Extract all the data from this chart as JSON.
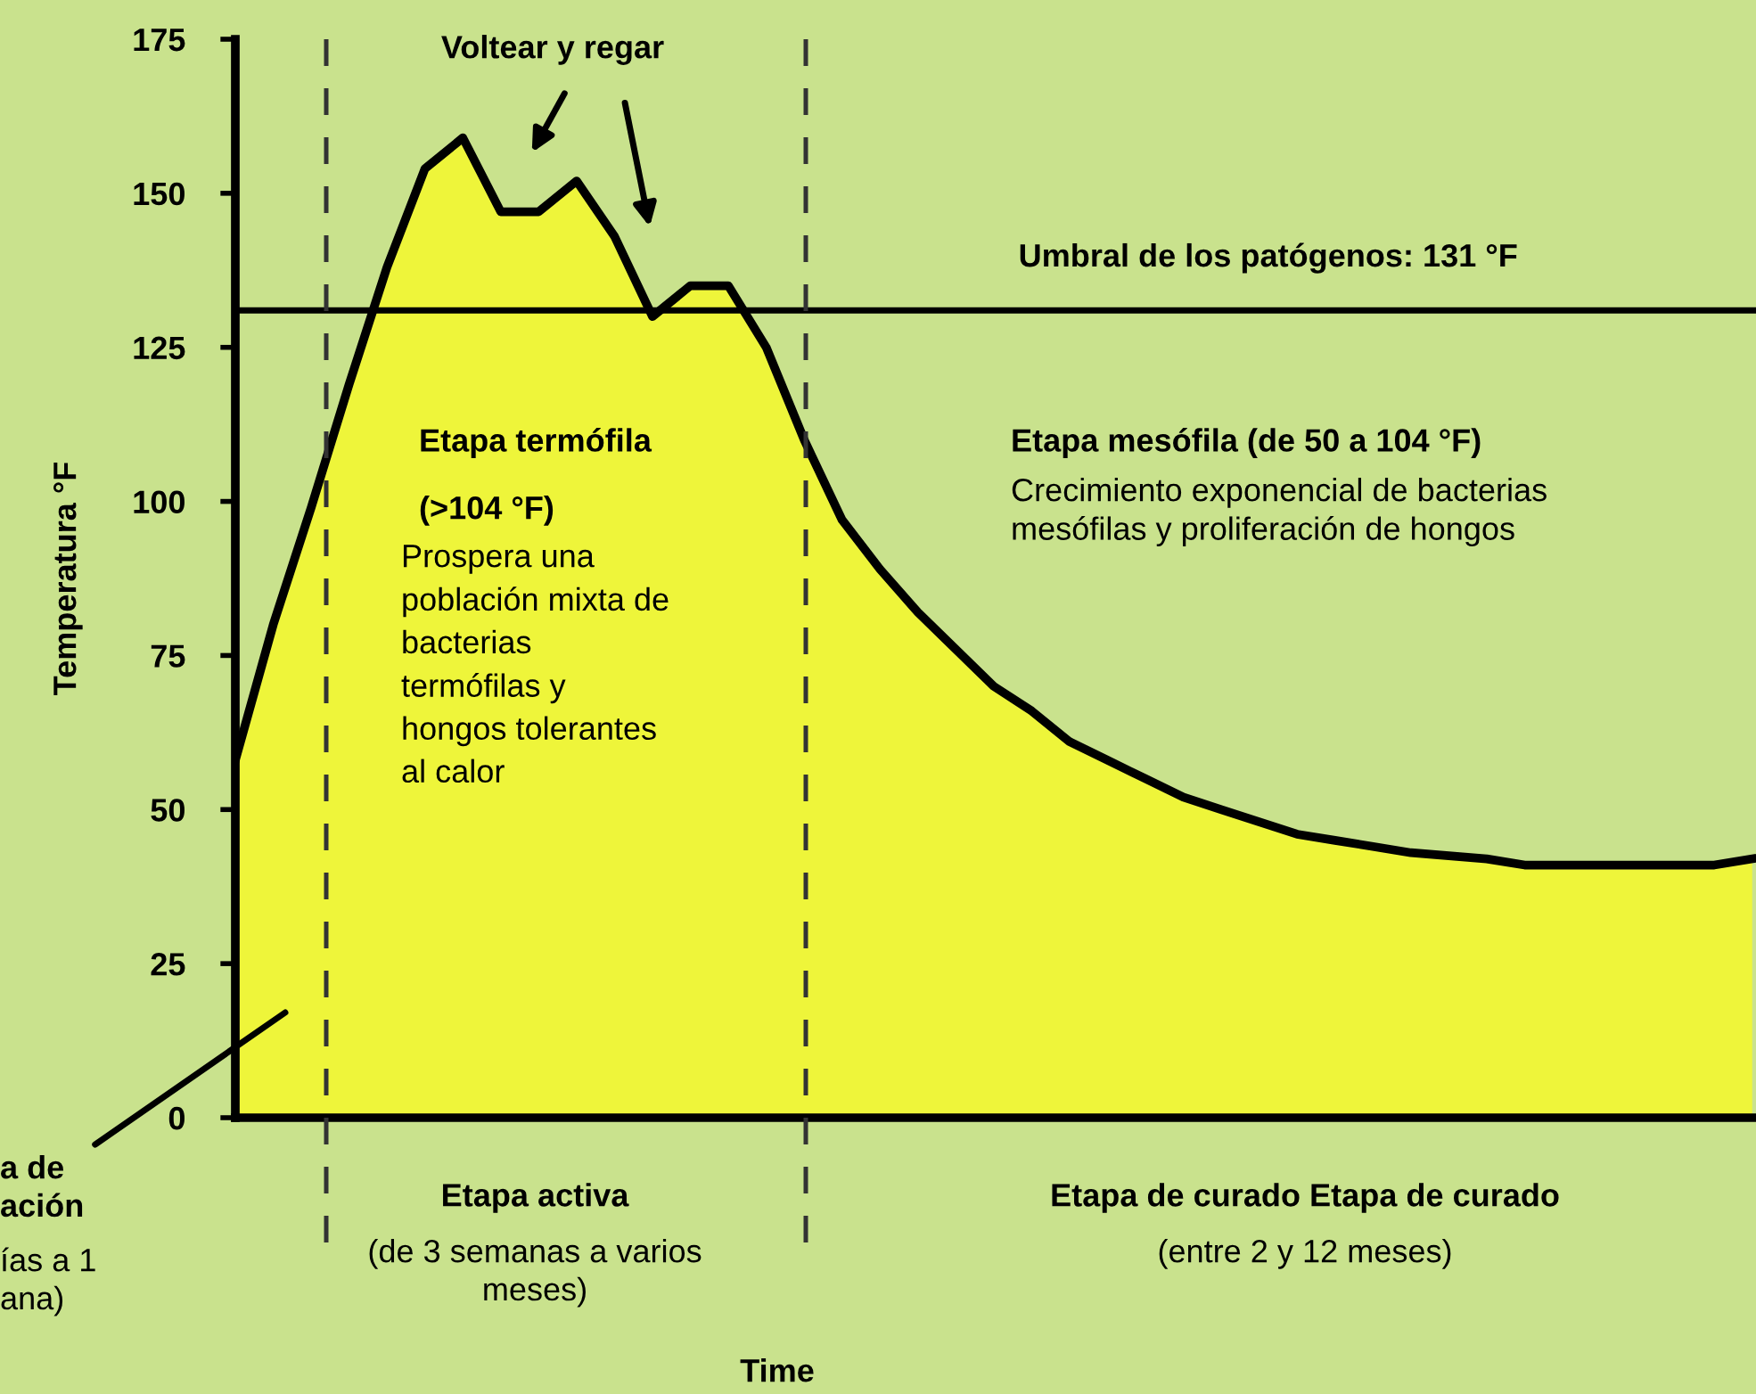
{
  "chart_data": {
    "type": "area",
    "ylabel": "Temperatura °F",
    "categories": [
      null,
      null,
      null,
      null,
      null,
      null,
      null,
      null,
      null,
      null,
      null,
      null,
      null,
      null,
      null,
      null,
      null,
      null,
      null,
      null,
      null,
      null,
      null,
      null,
      null,
      null,
      null,
      null,
      null,
      null,
      null,
      null,
      null,
      null,
      null,
      null,
      null,
      null,
      null,
      null,
      null
    ],
    "series": [
      {
        "color": "#eef53a",
        "values": [
          58,
          80,
          99,
          119,
          138,
          154,
          159,
          147,
          147,
          152,
          143,
          130,
          135,
          135,
          125,
          110,
          97,
          89,
          82,
          76,
          70,
          66,
          61,
          58,
          55,
          52,
          50,
          48,
          46,
          45,
          44,
          43,
          42.5,
          42,
          41,
          41,
          41,
          41,
          41,
          41,
          42
        ]
      }
    ],
    "ylim": [
      0,
      175
    ],
    "yticks": [
      0,
      25,
      50,
      75,
      100,
      125,
      150,
      175
    ],
    "tick_labels": "y",
    "grid": false,
    "ref_lines": [
      {
        "axis": "y",
        "value": 131,
        "label": "Umbral de los patógenos: 131 °F",
        "color": "#000000",
        "line_style": "solid"
      }
    ],
    "annotations": [
      "Voltear y regar",
      "Etapa termófila",
      "(>104 °F)",
      "Prospera una\npoblación mixta de\nbacterias\ntermófilas y\nhongos tolerantes\nal calor",
      "Etapa mesófila (de 50 a 104 °F)",
      "Crecimiento exponencial de bacterias\nmesófilas y proliferación de hongos",
      "Etapa activa",
      "(de 3 semanas a varios\nmeses)",
      "Etapa de curado Etapa de curado",
      "(entre 2 y 12 meses)",
      "a de\nación",
      "ías a 1\nana)",
      "Time"
    ]
  }
}
